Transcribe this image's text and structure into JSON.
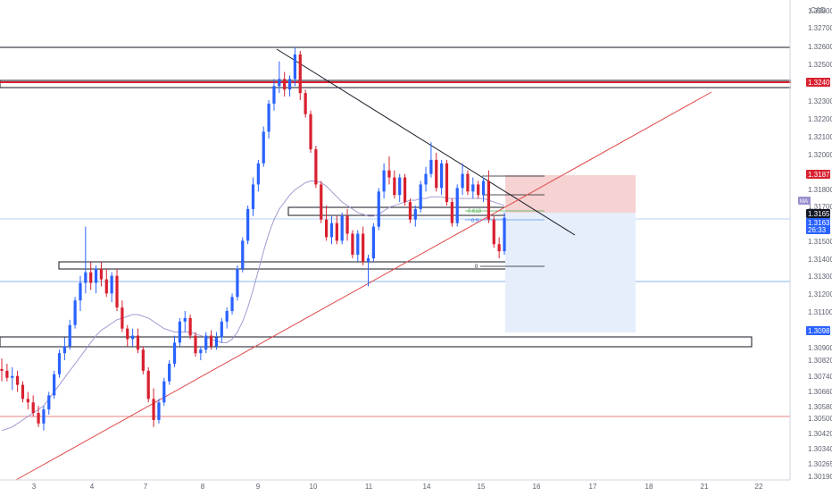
{
  "chart_data": {
    "type": "candlestick",
    "currency": "CAD",
    "xlabels": [
      "3",
      "4",
      "7",
      "8",
      "9",
      "10",
      "11",
      "14",
      "15",
      "16",
      "17",
      "18",
      "21",
      "22"
    ],
    "yticks": [
      "1.32800",
      "1.32700",
      "1.32600",
      "1.32500",
      "1.32300",
      "1.32200",
      "1.32100",
      "1.32000",
      "1.31800",
      "1.31700",
      "1.31500",
      "1.31400",
      "1.31300",
      "1.31200",
      "1.31100",
      "1.30900",
      "1.30820",
      "1.30740",
      "1.30660",
      "1.30580",
      "1.30500",
      "1.30420",
      "1.30340",
      "1.30265",
      "1.30190"
    ],
    "price_tags": [
      {
        "label": "1.32409",
        "color": "#d8202f"
      },
      {
        "label": "1.31875",
        "color": "#d8202f"
      },
      {
        "label": "1.31657",
        "color": "#131722"
      },
      {
        "label": "1.31631",
        "color": "#2962ff"
      },
      {
        "label": "26:33",
        "color": "#2962ff"
      },
      {
        "label": "1.30987",
        "color": "#2962ff"
      }
    ],
    "indicator_badge": "MA",
    "fib_labels": [
      "0.618",
      "0.5",
      "0"
    ],
    "colors": {
      "up": "#2962ff",
      "down": "#d8202f",
      "ma": "#9c8fce",
      "trend_up": "#e04848",
      "trend_down": "#131722",
      "zone_stop": "#f6d2d2",
      "zone_target": "#e6eefc"
    },
    "grid": false,
    "candles": [
      [
        1.3077,
        1.3083,
        1.307,
        1.3076
      ],
      [
        1.3076,
        1.308,
        1.307,
        1.3072
      ],
      [
        1.3072,
        1.3078,
        1.3065,
        1.3073
      ],
      [
        1.3073,
        1.3076,
        1.3064,
        1.3068
      ],
      [
        1.3068,
        1.307,
        1.3058,
        1.306
      ],
      [
        1.306,
        1.3064,
        1.3054,
        1.3058
      ],
      [
        1.3058,
        1.3062,
        1.305,
        1.3052
      ],
      [
        1.3052,
        1.3056,
        1.3044,
        1.3046
      ],
      [
        1.3046,
        1.3056,
        1.3042,
        1.3054
      ],
      [
        1.3054,
        1.3064,
        1.3051,
        1.3062
      ],
      [
        1.3062,
        1.3076,
        1.306,
        1.3074
      ],
      [
        1.3074,
        1.3088,
        1.3072,
        1.3086
      ],
      [
        1.3086,
        1.3095,
        1.3082,
        1.309
      ],
      [
        1.309,
        1.3105,
        1.3088,
        1.3102
      ],
      [
        1.3102,
        1.3118,
        1.31,
        1.3116
      ],
      [
        1.3116,
        1.313,
        1.311,
        1.3126
      ],
      [
        1.3126,
        1.3158,
        1.312,
        1.3132
      ],
      [
        1.3132,
        1.3138,
        1.3122,
        1.3126
      ],
      [
        1.3126,
        1.3136,
        1.312,
        1.3134
      ],
      [
        1.3134,
        1.3138,
        1.3124,
        1.3128
      ],
      [
        1.3128,
        1.3134,
        1.3118,
        1.312
      ],
      [
        1.312,
        1.3132,
        1.3115,
        1.313
      ],
      [
        1.313,
        1.3134,
        1.311,
        1.3112
      ],
      [
        1.3112,
        1.3116,
        1.3098,
        1.31
      ],
      [
        1.31,
        1.3102,
        1.309,
        1.3094
      ],
      [
        1.3094,
        1.31,
        1.309,
        1.3096
      ],
      [
        1.3096,
        1.31,
        1.3086,
        1.3088
      ],
      [
        1.3088,
        1.309,
        1.3074,
        1.3076
      ],
      [
        1.3076,
        1.3078,
        1.3058,
        1.306
      ],
      [
        1.306,
        1.3066,
        1.3044,
        1.3048
      ],
      [
        1.3048,
        1.306,
        1.3046,
        1.3058
      ],
      [
        1.3058,
        1.3072,
        1.3056,
        1.307
      ],
      [
        1.307,
        1.3082,
        1.3068,
        1.308
      ],
      [
        1.308,
        1.3096,
        1.3078,
        1.3092
      ],
      [
        1.3092,
        1.3106,
        1.309,
        1.3104
      ],
      [
        1.3104,
        1.311,
        1.3098,
        1.3106
      ],
      [
        1.3106,
        1.3108,
        1.3094,
        1.3096
      ],
      [
        1.3096,
        1.3098,
        1.3084,
        1.3086
      ],
      [
        1.3086,
        1.309,
        1.3082,
        1.3088
      ],
      [
        1.3088,
        1.3098,
        1.3086,
        1.3096
      ],
      [
        1.3096,
        1.3099,
        1.3088,
        1.309
      ],
      [
        1.309,
        1.3098,
        1.3088,
        1.3095
      ],
      [
        1.3095,
        1.3106,
        1.3092,
        1.3104
      ],
      [
        1.3104,
        1.3112,
        1.31,
        1.311
      ],
      [
        1.311,
        1.312,
        1.3108,
        1.3118
      ],
      [
        1.3118,
        1.3136,
        1.3116,
        1.3134
      ],
      [
        1.3134,
        1.3152,
        1.3132,
        1.315
      ],
      [
        1.315,
        1.317,
        1.3148,
        1.3168
      ],
      [
        1.3168,
        1.3186,
        1.3164,
        1.3182
      ],
      [
        1.3182,
        1.3196,
        1.3178,
        1.3194
      ],
      [
        1.3194,
        1.3215,
        1.3192,
        1.3212
      ],
      [
        1.3212,
        1.323,
        1.3208,
        1.3228
      ],
      [
        1.3228,
        1.3242,
        1.3224,
        1.3238
      ],
      [
        1.3238,
        1.3252,
        1.3234,
        1.3242
      ],
      [
        1.3242,
        1.3246,
        1.3232,
        1.3236
      ],
      [
        1.3236,
        1.3244,
        1.3232,
        1.3242
      ],
      [
        1.3242,
        1.326,
        1.3238,
        1.3256
      ],
      [
        1.3256,
        1.3258,
        1.323,
        1.3234
      ],
      [
        1.3234,
        1.3236,
        1.322,
        1.3222
      ],
      [
        1.3222,
        1.3224,
        1.32,
        1.3202
      ],
      [
        1.3202,
        1.3204,
        1.318,
        1.3182
      ],
      [
        1.3182,
        1.3184,
        1.316,
        1.3162
      ],
      [
        1.3162,
        1.317,
        1.315,
        1.3152
      ],
      [
        1.3152,
        1.3164,
        1.3148,
        1.316
      ],
      [
        1.316,
        1.3164,
        1.3148,
        1.315
      ],
      [
        1.315,
        1.3166,
        1.3148,
        1.3164
      ],
      [
        1.3164,
        1.3168,
        1.315,
        1.3154
      ],
      [
        1.3154,
        1.3156,
        1.314,
        1.3142
      ],
      [
        1.3142,
        1.3156,
        1.3138,
        1.3154
      ],
      [
        1.3154,
        1.3158,
        1.3136,
        1.3138
      ],
      [
        1.3138,
        1.3142,
        1.3124,
        1.314
      ],
      [
        1.314,
        1.316,
        1.3138,
        1.3158
      ],
      [
        1.3158,
        1.318,
        1.3156,
        1.3178
      ],
      [
        1.3178,
        1.3194,
        1.3174,
        1.319
      ],
      [
        1.319,
        1.3198,
        1.3182,
        1.3186
      ],
      [
        1.3186,
        1.319,
        1.3174,
        1.3176
      ],
      [
        1.3176,
        1.3188,
        1.3172,
        1.3186
      ],
      [
        1.3186,
        1.3188,
        1.317,
        1.3172
      ],
      [
        1.3172,
        1.3174,
        1.316,
        1.3162
      ],
      [
        1.3162,
        1.317,
        1.3158,
        1.3168
      ],
      [
        1.3168,
        1.3184,
        1.3166,
        1.3182
      ],
      [
        1.3182,
        1.3192,
        1.3178,
        1.3188
      ],
      [
        1.3188,
        1.3206,
        1.3186,
        1.3196
      ],
      [
        1.3196,
        1.32,
        1.3178,
        1.318
      ],
      [
        1.318,
        1.3196,
        1.3176,
        1.3194
      ],
      [
        1.3194,
        1.3196,
        1.317,
        1.3172
      ],
      [
        1.3172,
        1.3174,
        1.3158,
        1.316
      ],
      [
        1.316,
        1.3182,
        1.3158,
        1.318
      ],
      [
        1.318,
        1.3194,
        1.3176,
        1.3188
      ],
      [
        1.3188,
        1.319,
        1.3176,
        1.3178
      ],
      [
        1.3178,
        1.3186,
        1.3174,
        1.3182
      ],
      [
        1.3182,
        1.3184,
        1.3174,
        1.3176
      ],
      [
        1.3176,
        1.3186,
        1.3172,
        1.3184
      ],
      [
        1.3184,
        1.319,
        1.316,
        1.3162
      ],
      [
        1.3162,
        1.3164,
        1.3146,
        1.3148
      ],
      [
        1.3148,
        1.3152,
        1.314,
        1.3144
      ],
      [
        1.3144,
        1.3166,
        1.3142,
        1.31631
      ]
    ],
    "ma": [
      1.3042,
      1.3043,
      1.3044,
      1.3046,
      1.3048,
      1.305,
      1.3052,
      1.3054,
      1.3056,
      1.306,
      1.3064,
      1.3068,
      1.3072,
      1.3076,
      1.308,
      1.3084,
      1.3088,
      1.3092,
      1.3096,
      1.3099,
      1.3101,
      1.3103,
      1.3105,
      1.3106,
      1.3107,
      1.3108,
      1.3108,
      1.3107,
      1.3106,
      1.3104,
      1.3102,
      1.31,
      1.3099,
      1.3098,
      1.3098,
      1.3098,
      1.3098,
      1.3097,
      1.3096,
      1.3095,
      1.3094,
      1.3093,
      1.3092,
      1.3092,
      1.3094,
      1.3098,
      1.3104,
      1.3112,
      1.3122,
      1.3133,
      1.3144,
      1.3154,
      1.3162,
      1.3168,
      1.3172,
      1.3176,
      1.3179,
      1.3181,
      1.3183,
      1.3184,
      1.3184,
      1.3183,
      1.3181,
      1.3178,
      1.3175,
      1.3172,
      1.317,
      1.3168,
      1.3166,
      1.3165,
      1.3164,
      1.3164,
      1.3165,
      1.3167,
      1.3169,
      1.317,
      1.3171,
      1.3172,
      1.3173,
      1.3173,
      1.3174,
      1.3174,
      1.3175,
      1.3175,
      1.3175,
      1.3174,
      1.3174,
      1.3174,
      1.3174,
      1.3174,
      1.3174,
      1.3174,
      1.3174,
      1.3173,
      1.3172,
      1.3171,
      1.317
    ]
  }
}
